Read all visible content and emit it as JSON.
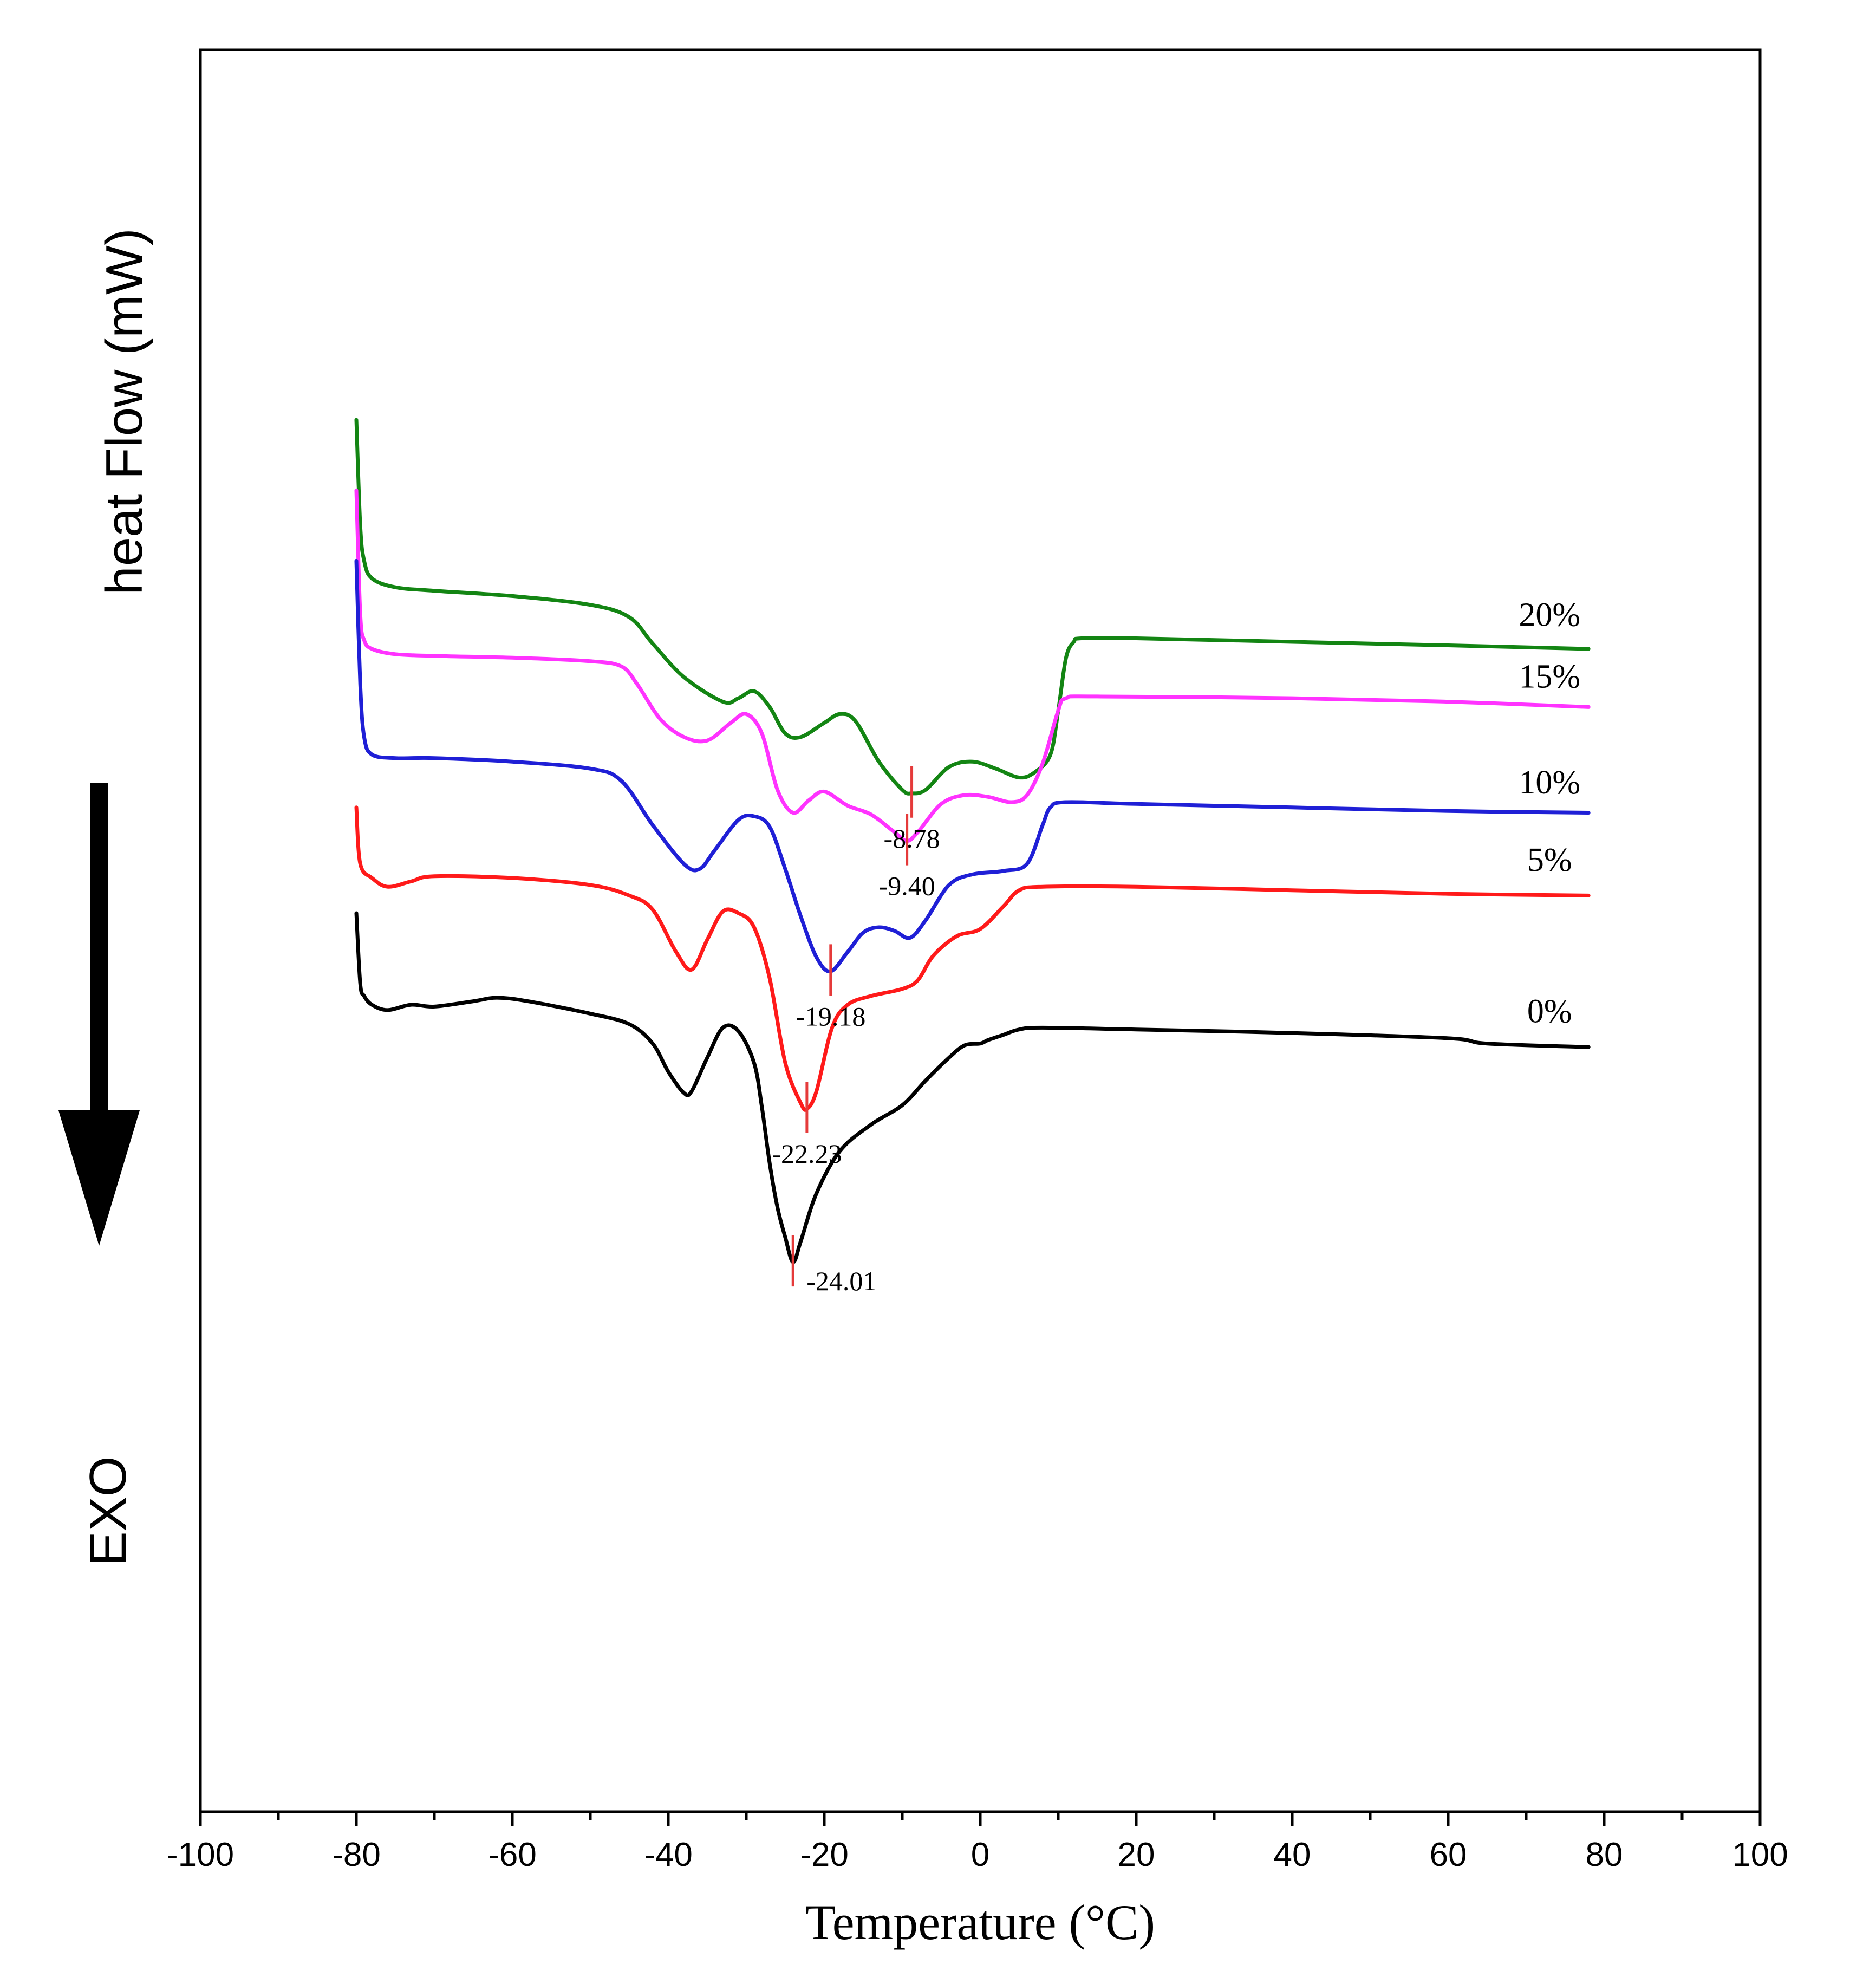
{
  "chart_data": {
    "type": "line",
    "title": "",
    "xlabel": "Temperature (°C)",
    "ylabel": "heat Flow (mW)",
    "exo_label": "EXO",
    "xlim": [
      -100,
      100
    ],
    "x_ticks": [
      -100,
      -80,
      -60,
      -40,
      -20,
      0,
      20,
      40,
      60,
      80,
      100
    ],
    "x_tick_labels": [
      "-100",
      "-80",
      "-60",
      "-40",
      "-20",
      "0",
      "20",
      "40",
      "60",
      "80",
      "100"
    ],
    "y_units": "relative (offset traces, up = endothermic, arrow points to EXO)",
    "ylim": [
      0,
      100
    ],
    "colors": {
      "s20": "#138513",
      "s15": "#ff33ff",
      "s10": "#1f1fd6",
      "s5": "#ff1a1a",
      "s0": "#000000",
      "peak_marker": "#e53a3a"
    },
    "series": [
      {
        "name": "20%",
        "color": "#138513",
        "points": [
          [
            -80,
            79
          ],
          [
            -79.5,
            73
          ],
          [
            -79,
            71
          ],
          [
            -78,
            70
          ],
          [
            -75,
            69.5
          ],
          [
            -70,
            69.3
          ],
          [
            -60,
            69
          ],
          [
            -50,
            68.5
          ],
          [
            -45,
            67.8
          ],
          [
            -42,
            66.3
          ],
          [
            -38,
            64.4
          ],
          [
            -33,
            63.0
          ],
          [
            -31,
            63.2
          ],
          [
            -29,
            63.6
          ],
          [
            -27,
            62.7
          ],
          [
            -25,
            61.2
          ],
          [
            -23,
            61.0
          ],
          [
            -20,
            61.8
          ],
          [
            -18,
            62.3
          ],
          [
            -16,
            61.9
          ],
          [
            -13,
            59.6
          ],
          [
            -10,
            58.0
          ],
          [
            -8.8,
            57.8
          ],
          [
            -7,
            58.0
          ],
          [
            -4,
            59.3
          ],
          [
            -1,
            59.6
          ],
          [
            2,
            59.2
          ],
          [
            5,
            58.7
          ],
          [
            7,
            59.0
          ],
          [
            9,
            60.0
          ],
          [
            10,
            62.5
          ],
          [
            11,
            65.5
          ],
          [
            12,
            66.4
          ],
          [
            13,
            66.6
          ],
          [
            20,
            66.6
          ],
          [
            40,
            66.4
          ],
          [
            60,
            66.2
          ],
          [
            78,
            66.0
          ]
        ]
      },
      {
        "name": "15%",
        "color": "#ff33ff",
        "points": [
          [
            -80,
            75
          ],
          [
            -79.5,
            68
          ],
          [
            -79,
            66.5
          ],
          [
            -78,
            66
          ],
          [
            -75,
            65.7
          ],
          [
            -70,
            65.6
          ],
          [
            -60,
            65.5
          ],
          [
            -50,
            65.3
          ],
          [
            -46,
            65.0
          ],
          [
            -44,
            64.0
          ],
          [
            -41,
            62.0
          ],
          [
            -38,
            61.0
          ],
          [
            -35,
            60.8
          ],
          [
            -32,
            61.8
          ],
          [
            -30,
            62.3
          ],
          [
            -28,
            61.2
          ],
          [
            -26,
            58.0
          ],
          [
            -24,
            56.7
          ],
          [
            -22,
            57.4
          ],
          [
            -20,
            57.9
          ],
          [
            -17,
            57.1
          ],
          [
            -14,
            56.6
          ],
          [
            -11,
            55.6
          ],
          [
            -9.4,
            55.1
          ],
          [
            -8,
            55.6
          ],
          [
            -5,
            57.2
          ],
          [
            -2,
            57.7
          ],
          [
            1,
            57.6
          ],
          [
            4,
            57.3
          ],
          [
            6,
            57.7
          ],
          [
            8,
            59.5
          ],
          [
            10,
            62.5
          ],
          [
            11,
            63.2
          ],
          [
            15,
            63.3
          ],
          [
            40,
            63.2
          ],
          [
            60,
            63.0
          ],
          [
            78,
            62.7
          ]
        ]
      },
      {
        "name": "10%",
        "color": "#1f1fd6",
        "points": [
          [
            -80,
            71
          ],
          [
            -79.5,
            64
          ],
          [
            -79,
            61
          ],
          [
            -78,
            60
          ],
          [
            -75,
            59.8
          ],
          [
            -70,
            59.8
          ],
          [
            -60,
            59.6
          ],
          [
            -50,
            59.2
          ],
          [
            -46,
            58.5
          ],
          [
            -42,
            56.0
          ],
          [
            -38,
            53.8
          ],
          [
            -36,
            53.5
          ],
          [
            -34,
            54.6
          ],
          [
            -31,
            56.3
          ],
          [
            -29,
            56.5
          ],
          [
            -27,
            55.9
          ],
          [
            -25,
            53.5
          ],
          [
            -23,
            50.8
          ],
          [
            -21,
            48.5
          ],
          [
            -19.2,
            47.7
          ],
          [
            -17,
            48.8
          ],
          [
            -15,
            49.9
          ],
          [
            -13,
            50.2
          ],
          [
            -11,
            50.0
          ],
          [
            -9,
            49.6
          ],
          [
            -7,
            50.6
          ],
          [
            -4,
            52.6
          ],
          [
            -1,
            53.2
          ],
          [
            3,
            53.4
          ],
          [
            6,
            53.8
          ],
          [
            8,
            56.0
          ],
          [
            9,
            57.0
          ],
          [
            11,
            57.3
          ],
          [
            20,
            57.2
          ],
          [
            40,
            57.0
          ],
          [
            60,
            56.8
          ],
          [
            78,
            56.7
          ]
        ]
      },
      {
        "name": "5%",
        "color": "#ff1a1a",
        "points": [
          [
            -80,
            57
          ],
          [
            -79.5,
            53.8
          ],
          [
            -78,
            53
          ],
          [
            -76,
            52.5
          ],
          [
            -73,
            52.8
          ],
          [
            -70,
            53.1
          ],
          [
            -60,
            53.0
          ],
          [
            -50,
            52.6
          ],
          [
            -45,
            52.0
          ],
          [
            -42,
            51.2
          ],
          [
            -39,
            48.8
          ],
          [
            -37,
            47.8
          ],
          [
            -35,
            49.5
          ],
          [
            -33,
            51.1
          ],
          [
            -31,
            51.0
          ],
          [
            -29,
            50.2
          ],
          [
            -27,
            47.3
          ],
          [
            -25,
            42.5
          ],
          [
            -23,
            40.2
          ],
          [
            -22.2,
            39.9
          ],
          [
            -21,
            40.9
          ],
          [
            -19,
            44.5
          ],
          [
            -17,
            45.8
          ],
          [
            -14,
            46.3
          ],
          [
            -10,
            46.7
          ],
          [
            -8,
            47.2
          ],
          [
            -6,
            48.6
          ],
          [
            -3,
            49.7
          ],
          [
            0,
            50.1
          ],
          [
            3,
            51.4
          ],
          [
            5,
            52.3
          ],
          [
            8,
            52.5
          ],
          [
            20,
            52.5
          ],
          [
            40,
            52.3
          ],
          [
            60,
            52.1
          ],
          [
            78,
            52.0
          ]
        ]
      },
      {
        "name": "0%",
        "color": "#000000",
        "points": [
          [
            -80,
            51
          ],
          [
            -79.5,
            47
          ],
          [
            -79,
            46.3
          ],
          [
            -78,
            45.8
          ],
          [
            -76,
            45.5
          ],
          [
            -73,
            45.8
          ],
          [
            -70,
            45.7
          ],
          [
            -65,
            46.0
          ],
          [
            -62,
            46.2
          ],
          [
            -58,
            46.0
          ],
          [
            -50,
            45.3
          ],
          [
            -45,
            44.7
          ],
          [
            -42,
            43.6
          ],
          [
            -40,
            42.0
          ],
          [
            -38,
            40.8
          ],
          [
            -37,
            40.9
          ],
          [
            -35,
            42.8
          ],
          [
            -33,
            44.5
          ],
          [
            -31,
            44.3
          ],
          [
            -29,
            42.5
          ],
          [
            -28,
            40.0
          ],
          [
            -27,
            36.8
          ],
          [
            -26,
            34.3
          ],
          [
            -25,
            32.6
          ],
          [
            -24,
            31.2
          ],
          [
            -23,
            32.4
          ],
          [
            -21,
            35.1
          ],
          [
            -18,
            37.5
          ],
          [
            -14,
            39.0
          ],
          [
            -10,
            40.1
          ],
          [
            -7,
            41.5
          ],
          [
            -4,
            42.8
          ],
          [
            -2,
            43.5
          ],
          [
            0,
            43.6
          ],
          [
            1,
            43.8
          ],
          [
            3,
            44.1
          ],
          [
            5,
            44.4
          ],
          [
            8,
            44.5
          ],
          [
            20,
            44.4
          ],
          [
            40,
            44.2
          ],
          [
            60,
            43.9
          ],
          [
            65,
            43.6
          ],
          [
            78,
            43.4
          ]
        ]
      }
    ],
    "series_labels": [
      {
        "text": "20%",
        "x": 73,
        "y": 67.3
      },
      {
        "text": "15%",
        "x": 73,
        "y": 63.8
      },
      {
        "text": "10%",
        "x": 73,
        "y": 57.8
      },
      {
        "text": "5%",
        "x": 73,
        "y": 53.4
      },
      {
        "text": "0%",
        "x": 73,
        "y": 44.8
      }
    ],
    "peaks": [
      {
        "series": "20%",
        "x": -8.78,
        "y": 57.8,
        "label": "-8.78"
      },
      {
        "series": "15%",
        "x": -9.4,
        "y": 55.1,
        "label": "-9.40"
      },
      {
        "series": "10%",
        "x": -19.18,
        "y": 47.7,
        "label": "-19.18"
      },
      {
        "series": "5%",
        "x": -22.23,
        "y": 39.9,
        "label": "-22.23"
      },
      {
        "series": "0%",
        "x": -24.01,
        "y": 31.2,
        "label": "-24.01"
      }
    ]
  }
}
